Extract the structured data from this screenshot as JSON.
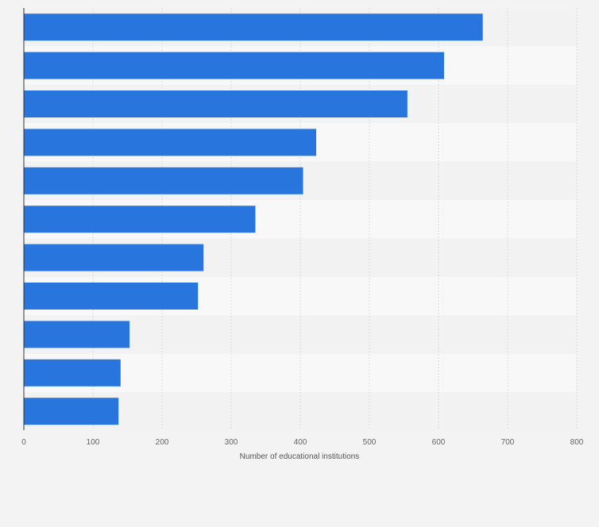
{
  "chart_data": {
    "type": "bar",
    "orientation": "horizontal",
    "title": "",
    "categories": [
      "",
      "",
      "",
      "",
      "",
      "",
      "",
      "",
      "",
      "",
      ""
    ],
    "values": [
      664,
      608,
      555,
      423,
      404,
      335,
      260,
      252,
      153,
      140,
      137
    ],
    "xlabel": "Number of educational institutions",
    "ylabel": "",
    "xlim": [
      0,
      800
    ],
    "xticks": [
      0,
      100,
      200,
      300,
      400,
      500,
      600,
      700,
      800
    ],
    "grid": true,
    "legend": "none"
  },
  "colors": {
    "bar": "#2876dd",
    "background": "#f3f3f3",
    "band_light": "#f8f8f8",
    "band_dark": "#f2f2f2",
    "grid": "#dcdcdc",
    "axis": "#333333",
    "tick_text": "#666666"
  }
}
